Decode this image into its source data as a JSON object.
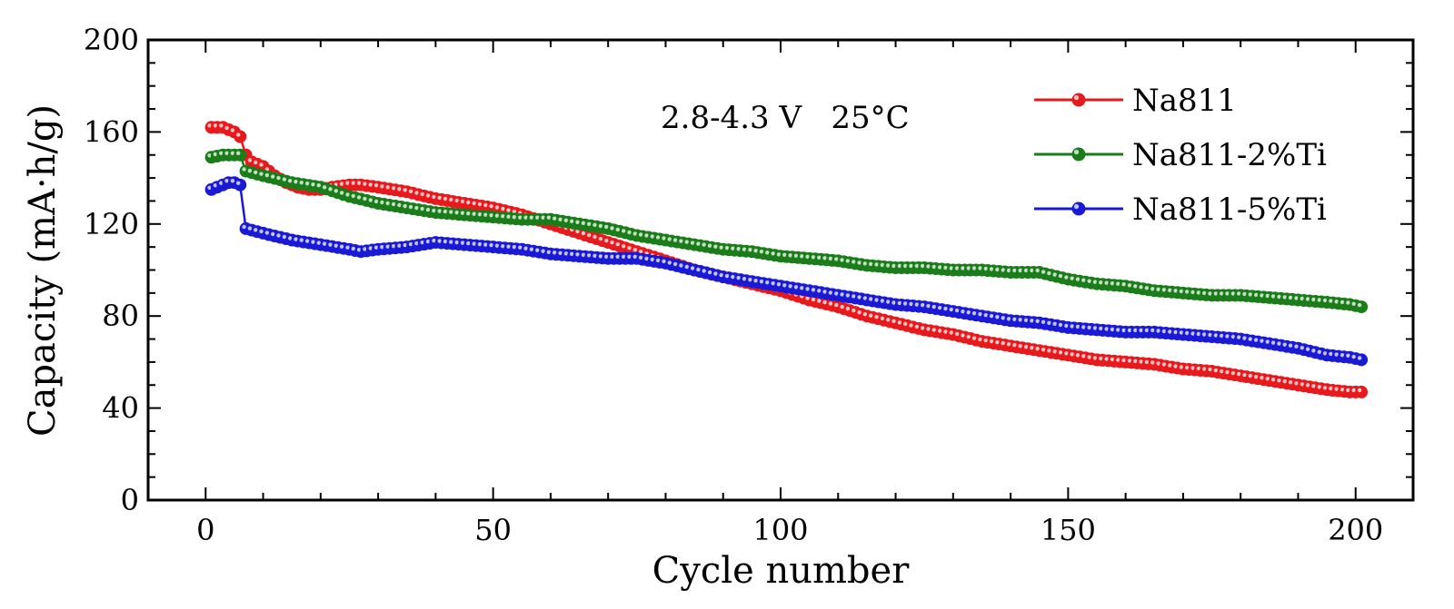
{
  "chart_data": {
    "type": "line",
    "title": "",
    "xlabel": "Cycle number",
    "ylabel": "Capacity (mA·h/g)",
    "xlim": [
      -10,
      210
    ],
    "ylim": [
      0,
      200
    ],
    "xticks": [
      0,
      50,
      100,
      150,
      200
    ],
    "yticks": [
      0,
      40,
      80,
      120,
      160,
      200
    ],
    "x_minor_step": 10,
    "y_minor_step": 10,
    "grid": false,
    "legend_position": "top-right",
    "annotation": "2.8-4.3 V   25°C",
    "series": [
      {
        "name": "Na811",
        "color": "#e8191c",
        "marker": "circle",
        "points": [
          [
            1,
            162
          ],
          [
            3,
            162
          ],
          [
            5,
            160
          ],
          [
            6,
            158
          ],
          [
            7,
            150
          ],
          [
            8,
            147
          ],
          [
            10,
            145
          ],
          [
            12,
            141
          ],
          [
            14,
            138
          ],
          [
            16,
            136
          ],
          [
            18,
            135
          ],
          [
            20,
            135
          ],
          [
            22,
            136
          ],
          [
            25,
            137
          ],
          [
            27,
            137
          ],
          [
            30,
            136
          ],
          [
            35,
            134
          ],
          [
            40,
            131
          ],
          [
            45,
            129
          ],
          [
            50,
            127
          ],
          [
            55,
            124
          ],
          [
            60,
            120
          ],
          [
            65,
            116
          ],
          [
            70,
            112
          ],
          [
            75,
            108
          ],
          [
            80,
            104
          ],
          [
            85,
            100
          ],
          [
            90,
            97
          ],
          [
            95,
            94
          ],
          [
            100,
            91
          ],
          [
            105,
            87
          ],
          [
            110,
            84
          ],
          [
            115,
            80
          ],
          [
            120,
            77
          ],
          [
            125,
            74
          ],
          [
            130,
            72
          ],
          [
            135,
            69
          ],
          [
            140,
            67
          ],
          [
            145,
            65
          ],
          [
            150,
            63
          ],
          [
            155,
            61
          ],
          [
            160,
            60
          ],
          [
            165,
            59
          ],
          [
            170,
            57
          ],
          [
            175,
            56
          ],
          [
            180,
            54
          ],
          [
            185,
            52
          ],
          [
            190,
            50
          ],
          [
            195,
            48
          ],
          [
            199,
            47
          ],
          [
            201,
            47
          ]
        ]
      },
      {
        "name": "Na811-2%Ti",
        "color": "#1a7d1a",
        "marker": "circle",
        "points": [
          [
            1,
            149
          ],
          [
            3,
            150
          ],
          [
            5,
            150
          ],
          [
            6,
            150
          ],
          [
            7,
            143
          ],
          [
            10,
            141
          ],
          [
            15,
            138
          ],
          [
            20,
            136
          ],
          [
            25,
            132
          ],
          [
            30,
            129
          ],
          [
            35,
            127
          ],
          [
            40,
            125
          ],
          [
            45,
            124
          ],
          [
            50,
            123
          ],
          [
            55,
            122
          ],
          [
            60,
            122
          ],
          [
            65,
            120
          ],
          [
            70,
            118
          ],
          [
            75,
            115
          ],
          [
            80,
            113
          ],
          [
            85,
            111
          ],
          [
            90,
            109
          ],
          [
            95,
            108
          ],
          [
            100,
            106
          ],
          [
            105,
            105
          ],
          [
            110,
            104
          ],
          [
            115,
            102
          ],
          [
            120,
            101
          ],
          [
            125,
            101
          ],
          [
            130,
            100
          ],
          [
            135,
            100
          ],
          [
            140,
            99
          ],
          [
            145,
            99
          ],
          [
            150,
            96
          ],
          [
            155,
            94
          ],
          [
            160,
            93
          ],
          [
            165,
            91
          ],
          [
            170,
            90
          ],
          [
            175,
            89
          ],
          [
            180,
            89
          ],
          [
            185,
            88
          ],
          [
            190,
            87
          ],
          [
            195,
            86
          ],
          [
            199,
            85
          ],
          [
            201,
            84
          ]
        ]
      },
      {
        "name": "Na811-5%Ti",
        "color": "#1a1ad6",
        "marker": "circle",
        "points": [
          [
            1,
            135
          ],
          [
            2,
            136
          ],
          [
            3,
            137
          ],
          [
            4,
            138
          ],
          [
            5,
            138
          ],
          [
            6,
            137
          ],
          [
            7,
            118
          ],
          [
            10,
            116
          ],
          [
            15,
            113
          ],
          [
            20,
            111
          ],
          [
            25,
            109
          ],
          [
            27,
            108
          ],
          [
            30,
            109
          ],
          [
            35,
            110
          ],
          [
            40,
            112
          ],
          [
            45,
            111
          ],
          [
            50,
            110
          ],
          [
            55,
            109
          ],
          [
            60,
            107
          ],
          [
            65,
            106
          ],
          [
            70,
            105
          ],
          [
            75,
            105
          ],
          [
            80,
            103
          ],
          [
            85,
            100
          ],
          [
            90,
            97
          ],
          [
            95,
            95
          ],
          [
            100,
            93
          ],
          [
            105,
            91
          ],
          [
            110,
            89
          ],
          [
            115,
            87
          ],
          [
            120,
            85
          ],
          [
            125,
            84
          ],
          [
            130,
            82
          ],
          [
            135,
            80
          ],
          [
            140,
            78
          ],
          [
            145,
            77
          ],
          [
            150,
            75
          ],
          [
            155,
            74
          ],
          [
            160,
            73
          ],
          [
            165,
            73
          ],
          [
            170,
            72
          ],
          [
            175,
            71
          ],
          [
            180,
            70
          ],
          [
            185,
            68
          ],
          [
            190,
            66
          ],
          [
            195,
            63
          ],
          [
            199,
            62
          ],
          [
            201,
            61
          ]
        ]
      }
    ]
  }
}
